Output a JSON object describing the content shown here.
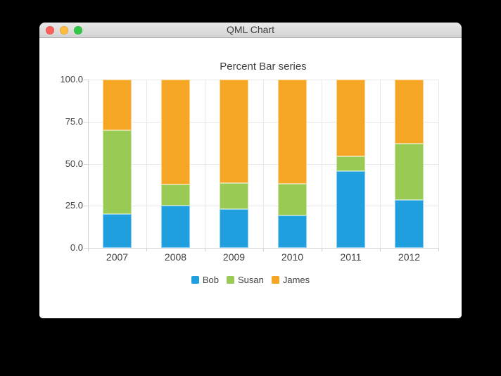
{
  "window": {
    "title": "QML Chart",
    "traffic_lights": [
      {
        "name": "close",
        "color": "#fc605c"
      },
      {
        "name": "minimize",
        "color": "#fdbc40"
      },
      {
        "name": "zoom",
        "color": "#33c748"
      }
    ]
  },
  "chart_data": {
    "type": "bar",
    "variant": "percent-stacked",
    "title": "Percent Bar series",
    "categories": [
      "2007",
      "2008",
      "2009",
      "2010",
      "2011",
      "2012"
    ],
    "series": [
      {
        "name": "Bob",
        "color": "#209fdf",
        "percent_values": [
          20,
          25,
          23.08,
          19.05,
          45.45,
          28.57
        ]
      },
      {
        "name": "Susan",
        "color": "#99ca53",
        "percent_values": [
          50,
          12.5,
          15.38,
          19.05,
          9.09,
          33.33
        ]
      },
      {
        "name": "James",
        "color": "#f6a625",
        "percent_values": [
          30,
          62.5,
          61.54,
          61.9,
          45.45,
          38.1
        ]
      }
    ],
    "y_ticks": [
      "100.0",
      "75.0",
      "50.0",
      "25.0",
      "0.0"
    ],
    "ylim": [
      0,
      100
    ],
    "xlabel": "",
    "ylabel": "",
    "grid": true,
    "legend_position": "bottom"
  },
  "colors": {
    "grid_line": "#e8e8e8",
    "axis_line": "#d2d2d2",
    "label_text": "#404044",
    "titlebar_text": "#3c3c3c",
    "window_bg": "#ffffff"
  }
}
